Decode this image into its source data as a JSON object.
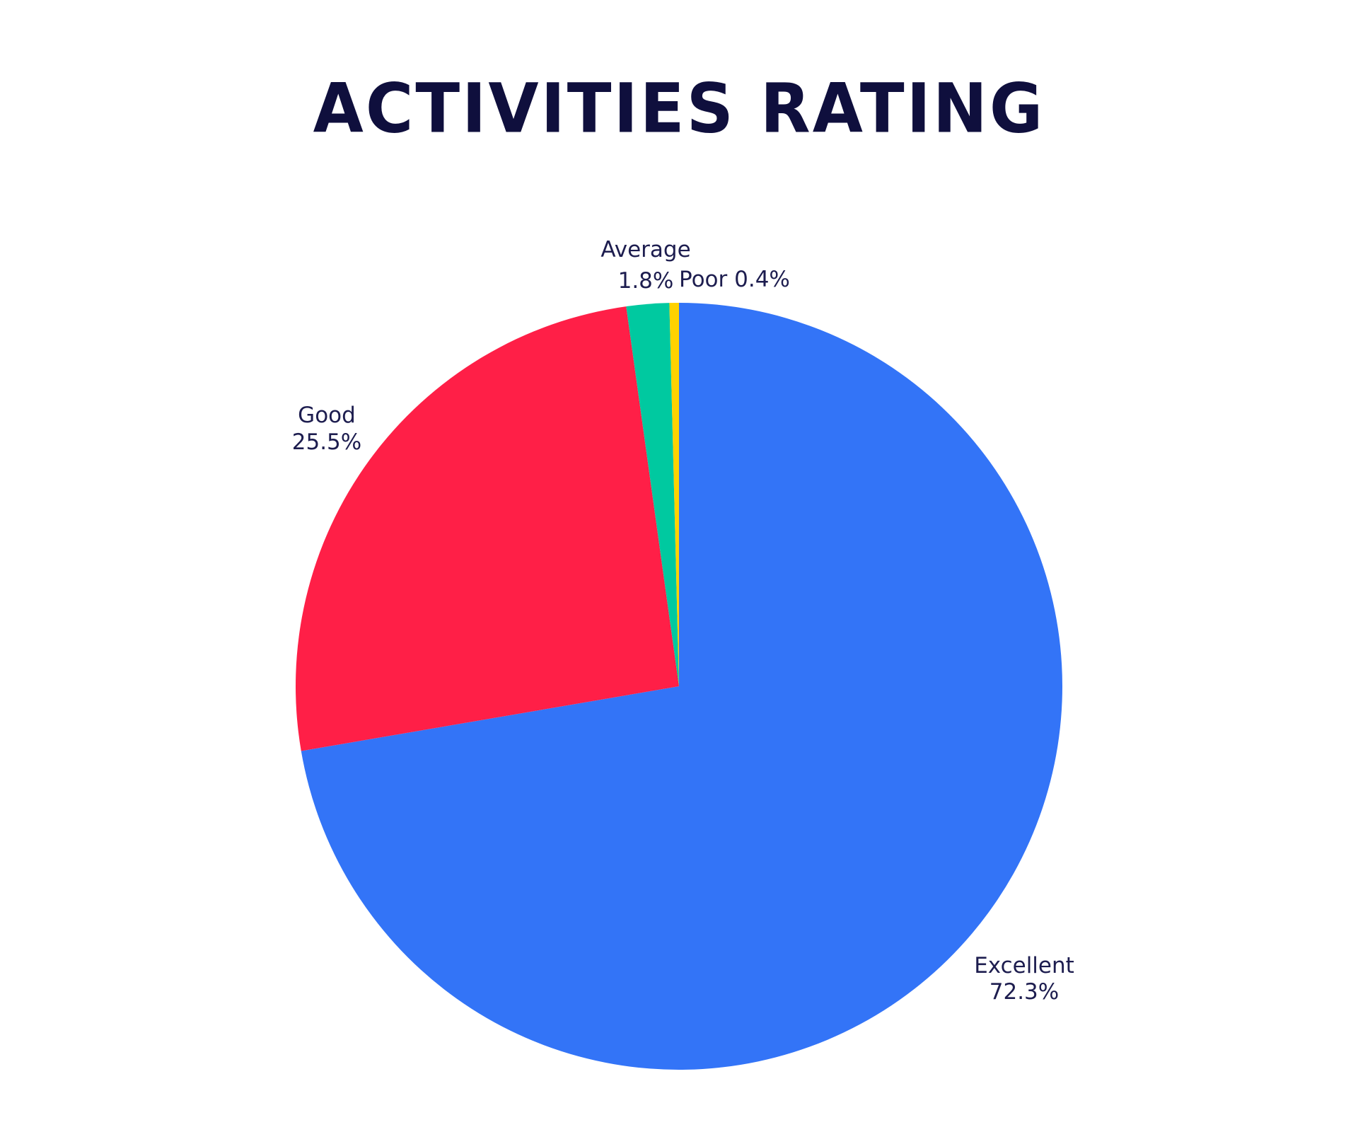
{
  "chart_data": {
    "type": "pie",
    "title": "ACTIVITIES RATING",
    "slices": [
      {
        "label": "Excellent",
        "percent_label": "72.3%",
        "value": 72.3,
        "color": "#3374f7"
      },
      {
        "label": "Good",
        "percent_label": "25.5%",
        "value": 25.5,
        "color": "#ff1f47"
      },
      {
        "label": "Average",
        "percent_label": "1.8%",
        "value": 1.8,
        "color": "#00c9a0"
      },
      {
        "label": "Poor",
        "percent_label": "0.4%",
        "value": 0.4,
        "color": "#ffd200"
      }
    ],
    "start_angle": "12 o'clock",
    "direction": "clockwise",
    "legend": "none"
  }
}
